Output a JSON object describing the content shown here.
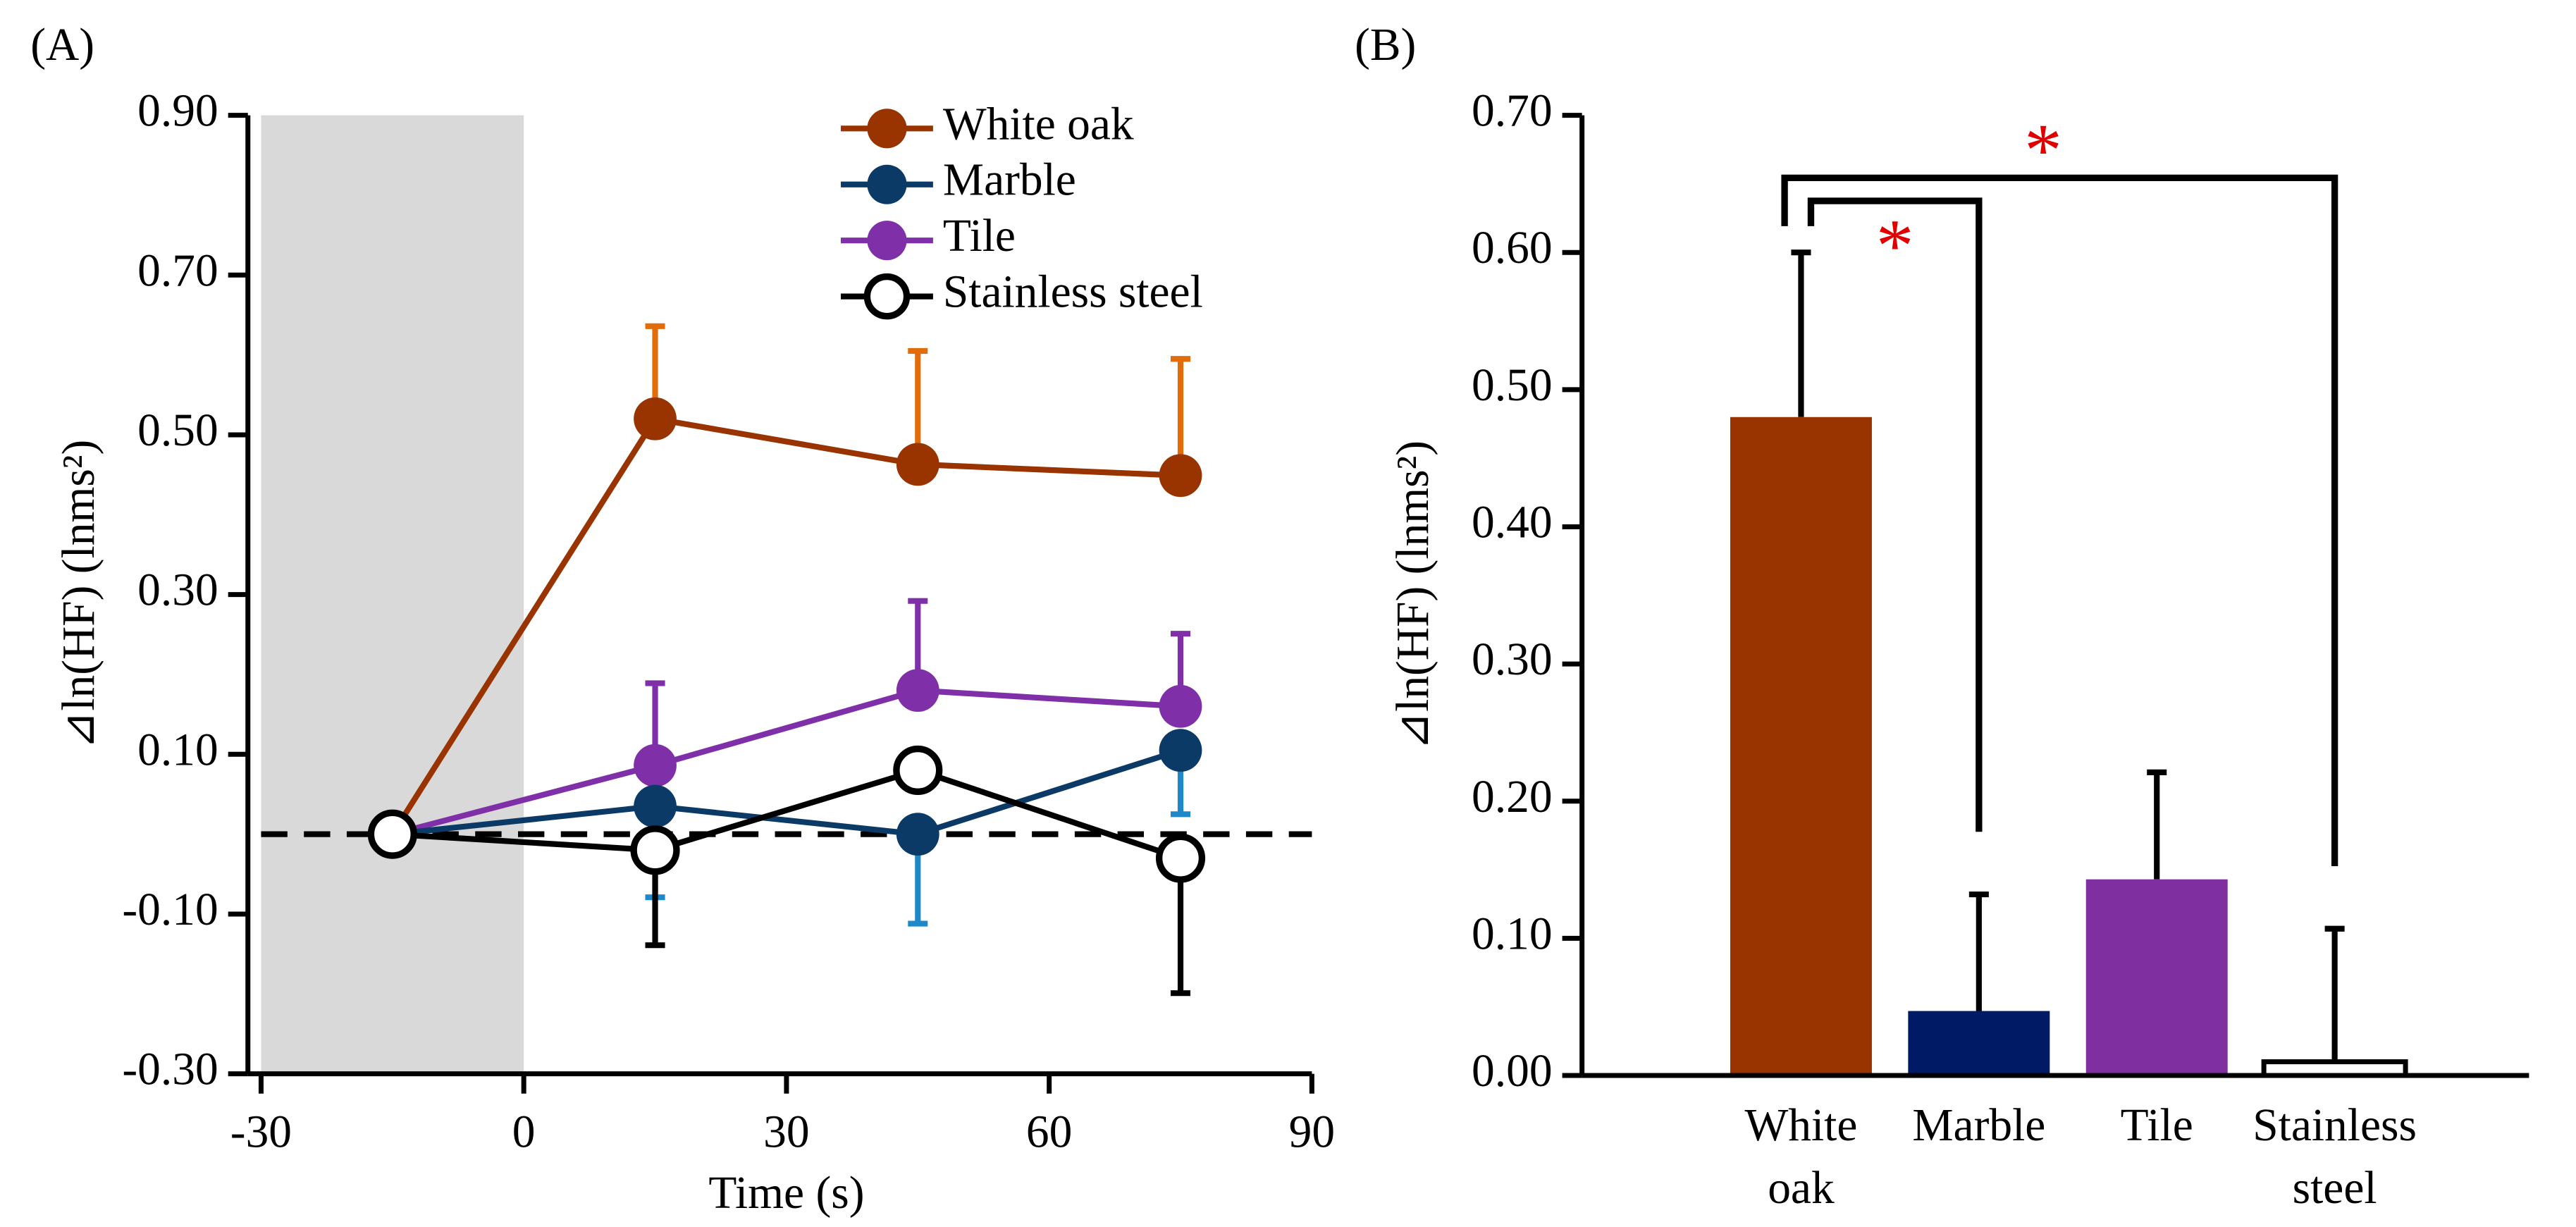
{
  "chart_data": [
    {
      "type": "line",
      "panel_label": "(A)",
      "x_label": "Time (s)",
      "y_label": "⊿ln(HF) (lnms²)",
      "x": [
        -15,
        15,
        45,
        75
      ],
      "xlim": [
        -30,
        90
      ],
      "xticks": [
        -30,
        0,
        30,
        60,
        90
      ],
      "ylim": [
        -0.3,
        0.9
      ],
      "yticks": [
        {
          "value": -0.3,
          "label": "-0.30"
        },
        {
          "value": -0.1,
          "label": "-0.10"
        },
        {
          "value": 0.1,
          "label": "0.10"
        },
        {
          "value": 0.3,
          "label": "0.30"
        },
        {
          "value": 0.5,
          "label": "0.50"
        },
        {
          "value": 0.7,
          "label": "0.70"
        },
        {
          "value": 0.9,
          "label": "0.90"
        }
      ],
      "shaded_x": [
        -30,
        0
      ],
      "reference_y": 0,
      "legend": "upper right",
      "series": [
        {
          "name": "White oak",
          "color": "#993300",
          "error_color": "#e36c0a",
          "error_bar": "up",
          "values": [
            0,
            0.52,
            0.463,
            0.449
          ],
          "errors": [
            null,
            0.116,
            0.142,
            0.146
          ]
        },
        {
          "name": "Marble",
          "color": "#0b3a66",
          "error_color": "#1f88c8",
          "error_bar": "down",
          "values": [
            0,
            0.035,
            0,
            0.105
          ],
          "errors": [
            null,
            0.114,
            0.112,
            0.08
          ]
        },
        {
          "name": "Tile",
          "color": "#7f2fa8",
          "error_color": "#7f2fa8",
          "error_bar": "up",
          "values": [
            0,
            0.086,
            0.18,
            0.16
          ],
          "errors": [
            null,
            0.103,
            0.112,
            0.091
          ]
        },
        {
          "name": "Stainless steel",
          "color": "#000000",
          "error_color": "#000000",
          "error_bar": "down",
          "hollow": true,
          "values": [
            0,
            -0.02,
            0.08,
            -0.03
          ],
          "errors": [
            null,
            0.119,
            null,
            0.169
          ]
        }
      ]
    },
    {
      "type": "bar",
      "panel_label": "(B)",
      "y_label": "⊿ln(HF) (lnms²)",
      "categories": [
        "White oak",
        "Marble",
        "Tile",
        "Stainless steel"
      ],
      "values": [
        0.48,
        0.047,
        0.143,
        0.01
      ],
      "errors": [
        0.12,
        0.085,
        0.078,
        0.097
      ],
      "colors": [
        "#993300",
        "#001a66",
        "#7f2fa0",
        "#ffffff"
      ],
      "ylim": [
        0,
        0.7
      ],
      "yticks": [
        {
          "value": 0,
          "label": "0.00"
        },
        {
          "value": 0.1,
          "label": "0.10"
        },
        {
          "value": 0.2,
          "label": "0.20"
        },
        {
          "value": 0.3,
          "label": "0.30"
        },
        {
          "value": 0.4,
          "label": "0.40"
        },
        {
          "value": 0.5,
          "label": "0.50"
        },
        {
          "value": 0.6,
          "label": "0.60"
        },
        {
          "value": 0.7,
          "label": "0.70"
        }
      ],
      "significance": [
        {
          "pair": [
            0,
            3
          ],
          "label": "*"
        },
        {
          "pair": [
            0,
            1
          ],
          "label": "*"
        }
      ]
    }
  ]
}
